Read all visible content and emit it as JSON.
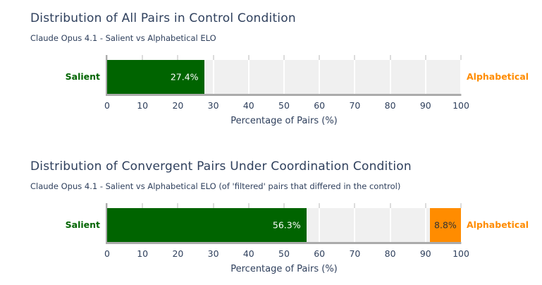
{
  "style": {
    "page_bg": "#FFFFFF",
    "title_color": "#2E3F5C",
    "tick_color": "#2E3F5C",
    "green": "#006400",
    "orange": "#FF8C00",
    "track_bg": "#F0F0F0",
    "gridline_color": "#DCDCDC",
    "spine_color": "#ABABAB",
    "value_light": "#FFFFFF",
    "value_dark": "#333333"
  },
  "chart_data": [
    {
      "type": "bar",
      "orientation": "horizontal",
      "title": "Distribution of All Pairs in Control Condition",
      "subtitle": "Claude Opus 4.1 - Salient vs Alphabetical ELO",
      "xlabel": "Percentage of Pairs (%)",
      "xlim": [
        0,
        100
      ],
      "xticks": [
        0,
        10,
        20,
        30,
        40,
        50,
        60,
        70,
        80,
        90,
        100
      ],
      "grid": true,
      "legend": "none",
      "series": [
        {
          "name": "Salient",
          "value": 27.4,
          "value_label": "27.4%",
          "color": "#006400",
          "anchor": "left"
        },
        {
          "name": "Alphabetical",
          "value": null,
          "value_label": "",
          "color": "#FF8C00",
          "anchor": "right"
        }
      ]
    },
    {
      "type": "bar",
      "orientation": "horizontal",
      "title": "Distribution of Convergent Pairs Under Coordination Condition",
      "subtitle": "Claude Opus 4.1 - Salient vs Alphabetical ELO (of 'filtered' pairs that differed in the control)",
      "xlabel": "Percentage of Pairs (%)",
      "xlim": [
        0,
        100
      ],
      "xticks": [
        0,
        10,
        20,
        30,
        40,
        50,
        60,
        70,
        80,
        90,
        100
      ],
      "grid": true,
      "legend": "none",
      "series": [
        {
          "name": "Salient",
          "value": 56.3,
          "value_label": "56.3%",
          "color": "#006400",
          "anchor": "left"
        },
        {
          "name": "Alphabetical",
          "value": 8.8,
          "value_label": "8.8%",
          "color": "#FF8C00",
          "anchor": "right"
        }
      ]
    }
  ]
}
